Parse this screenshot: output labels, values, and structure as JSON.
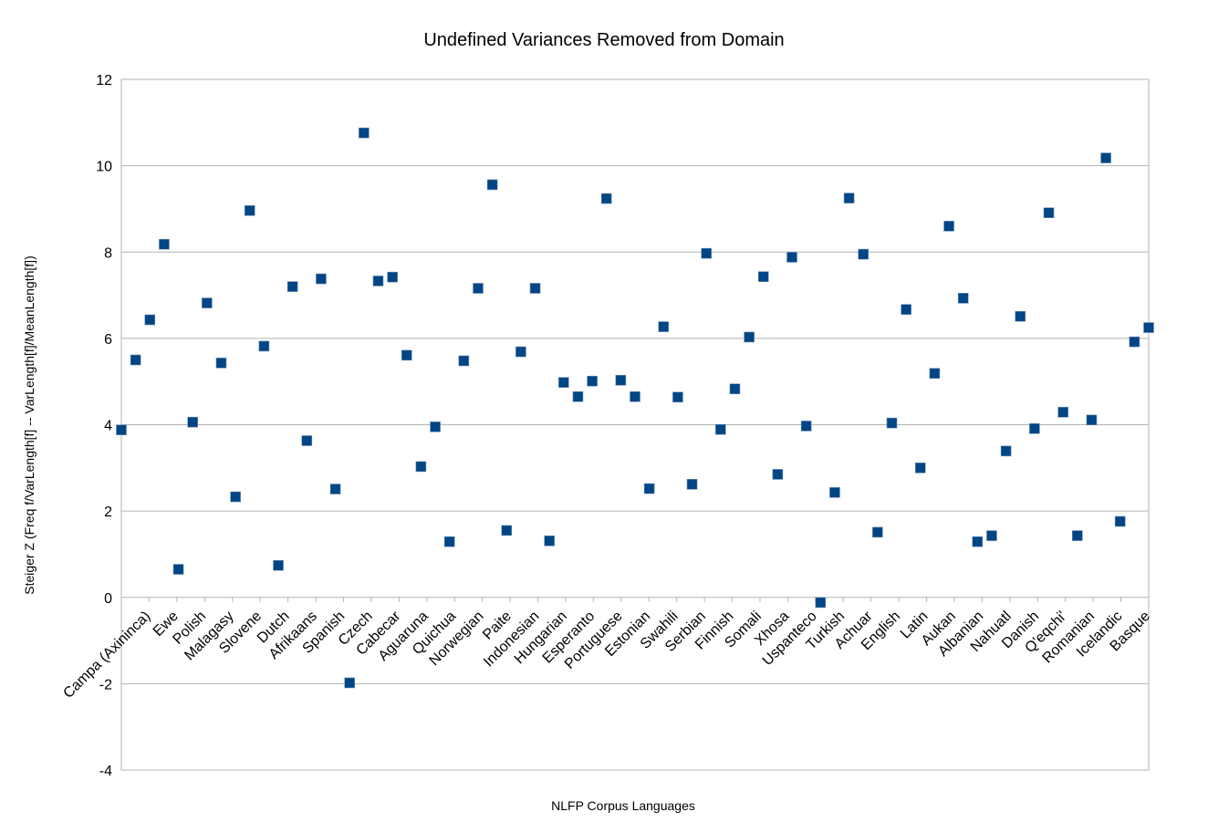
{
  "chart_data": {
    "type": "scatter",
    "title": "Undefined Variances Removed from Domain",
    "xlabel": "NLFP Corpus Languages",
    "ylabel": "Steiger Z (Freq f/VarLength[f] -- VarLength[f]/MeanLength[f])",
    "ylim": [
      -4,
      12
    ],
    "yticks": [
      "-4",
      "-2",
      "0",
      "2",
      "4",
      "6",
      "8",
      "10",
      "12"
    ],
    "grid": true,
    "legend": "none",
    "marker_color": "#004586",
    "grid_color": "#b3b3b3",
    "x": [
      "Campa (Axininca)",
      "Ewe",
      "Polish",
      "Malagasy",
      "Slovene",
      "Dutch",
      "Afrikaans",
      "Spanish",
      "Czech",
      "Cabecar",
      "Aguaruna",
      "Quichua",
      "Norwegian",
      "Paite",
      "Indonesian",
      "Hungarian",
      "Esperanto",
      "Portuguese",
      "Estonian",
      "Swahili",
      "Serbian",
      "Finnish",
      "Somali",
      "Xhosa",
      "Uspanteco",
      "Turkish",
      "Achuar",
      "English",
      "Latin",
      "Aukan",
      "Albanian",
      "Nahuatl",
      "Danish",
      "Q'eqchi'",
      "Romanian",
      "Icelandic",
      "Basque"
    ],
    "series": [
      {
        "points": [
          {
            "x": 1,
            "y": 3.88
          },
          {
            "x": 2,
            "y": 5.5
          },
          {
            "x": 3,
            "y": 6.43
          },
          {
            "x": 4,
            "y": 8.18
          },
          {
            "x": 5,
            "y": 0.65
          },
          {
            "x": 6,
            "y": 4.06
          },
          {
            "x": 7,
            "y": 6.82
          },
          {
            "x": 8,
            "y": 5.43
          },
          {
            "x": 9,
            "y": 2.33
          },
          {
            "x": 10,
            "y": 8.96
          },
          {
            "x": 11,
            "y": 5.82
          },
          {
            "x": 12,
            "y": 0.74
          },
          {
            "x": 13,
            "y": 7.2
          },
          {
            "x": 14,
            "y": 3.63
          },
          {
            "x": 15,
            "y": 7.38
          },
          {
            "x": 16,
            "y": 2.51
          },
          {
            "x": 17,
            "y": -1.98
          },
          {
            "x": 18,
            "y": 10.76
          },
          {
            "x": 19,
            "y": 7.33
          },
          {
            "x": 20,
            "y": 7.42
          },
          {
            "x": 21,
            "y": 5.61
          },
          {
            "x": 22,
            "y": 3.03
          },
          {
            "x": 23,
            "y": 3.95
          },
          {
            "x": 24,
            "y": 1.29
          },
          {
            "x": 25,
            "y": 5.48
          },
          {
            "x": 26,
            "y": 7.16
          },
          {
            "x": 27,
            "y": 9.56
          },
          {
            "x": 28,
            "y": 1.55
          },
          {
            "x": 29,
            "y": 5.69
          },
          {
            "x": 30,
            "y": 7.16
          },
          {
            "x": 31,
            "y": 1.31
          },
          {
            "x": 32,
            "y": 4.98
          },
          {
            "x": 33,
            "y": 4.65
          },
          {
            "x": 34,
            "y": 5.01
          },
          {
            "x": 35,
            "y": 9.24
          },
          {
            "x": 36,
            "y": 5.03
          },
          {
            "x": 37,
            "y": 4.65
          },
          {
            "x": 38,
            "y": 2.52
          },
          {
            "x": 39,
            "y": 6.27
          },
          {
            "x": 40,
            "y": 4.64
          },
          {
            "x": 41,
            "y": 2.62
          },
          {
            "x": 42,
            "y": 7.97
          },
          {
            "x": 43,
            "y": 3.89
          },
          {
            "x": 44,
            "y": 4.83
          },
          {
            "x": 45,
            "y": 6.03
          },
          {
            "x": 46,
            "y": 7.43
          },
          {
            "x": 47,
            "y": 2.85
          },
          {
            "x": 48,
            "y": 7.88
          },
          {
            "x": 49,
            "y": 3.97
          },
          {
            "x": 50,
            "y": -0.12
          },
          {
            "x": 51,
            "y": 2.43
          },
          {
            "x": 52,
            "y": 9.25
          },
          {
            "x": 53,
            "y": 7.95
          },
          {
            "x": 54,
            "y": 1.51
          },
          {
            "x": 55,
            "y": 4.04
          },
          {
            "x": 56,
            "y": 6.67
          },
          {
            "x": 57,
            "y": 3.0
          },
          {
            "x": 58,
            "y": 5.19
          },
          {
            "x": 59,
            "y": 8.6
          },
          {
            "x": 60,
            "y": 6.93
          },
          {
            "x": 61,
            "y": 1.29
          },
          {
            "x": 62,
            "y": 1.43
          },
          {
            "x": 63,
            "y": 3.39
          },
          {
            "x": 64,
            "y": 6.51
          },
          {
            "x": 65,
            "y": 3.91
          },
          {
            "x": 66,
            "y": 8.91
          },
          {
            "x": 67,
            "y": 4.29
          },
          {
            "x": 68,
            "y": 1.43
          },
          {
            "x": 69,
            "y": 4.11
          },
          {
            "x": 70,
            "y": 10.18
          },
          {
            "x": 71,
            "y": 1.76
          },
          {
            "x": 72,
            "y": 5.92
          },
          {
            "x": 73,
            "y": 6.25
          }
        ]
      }
    ]
  }
}
